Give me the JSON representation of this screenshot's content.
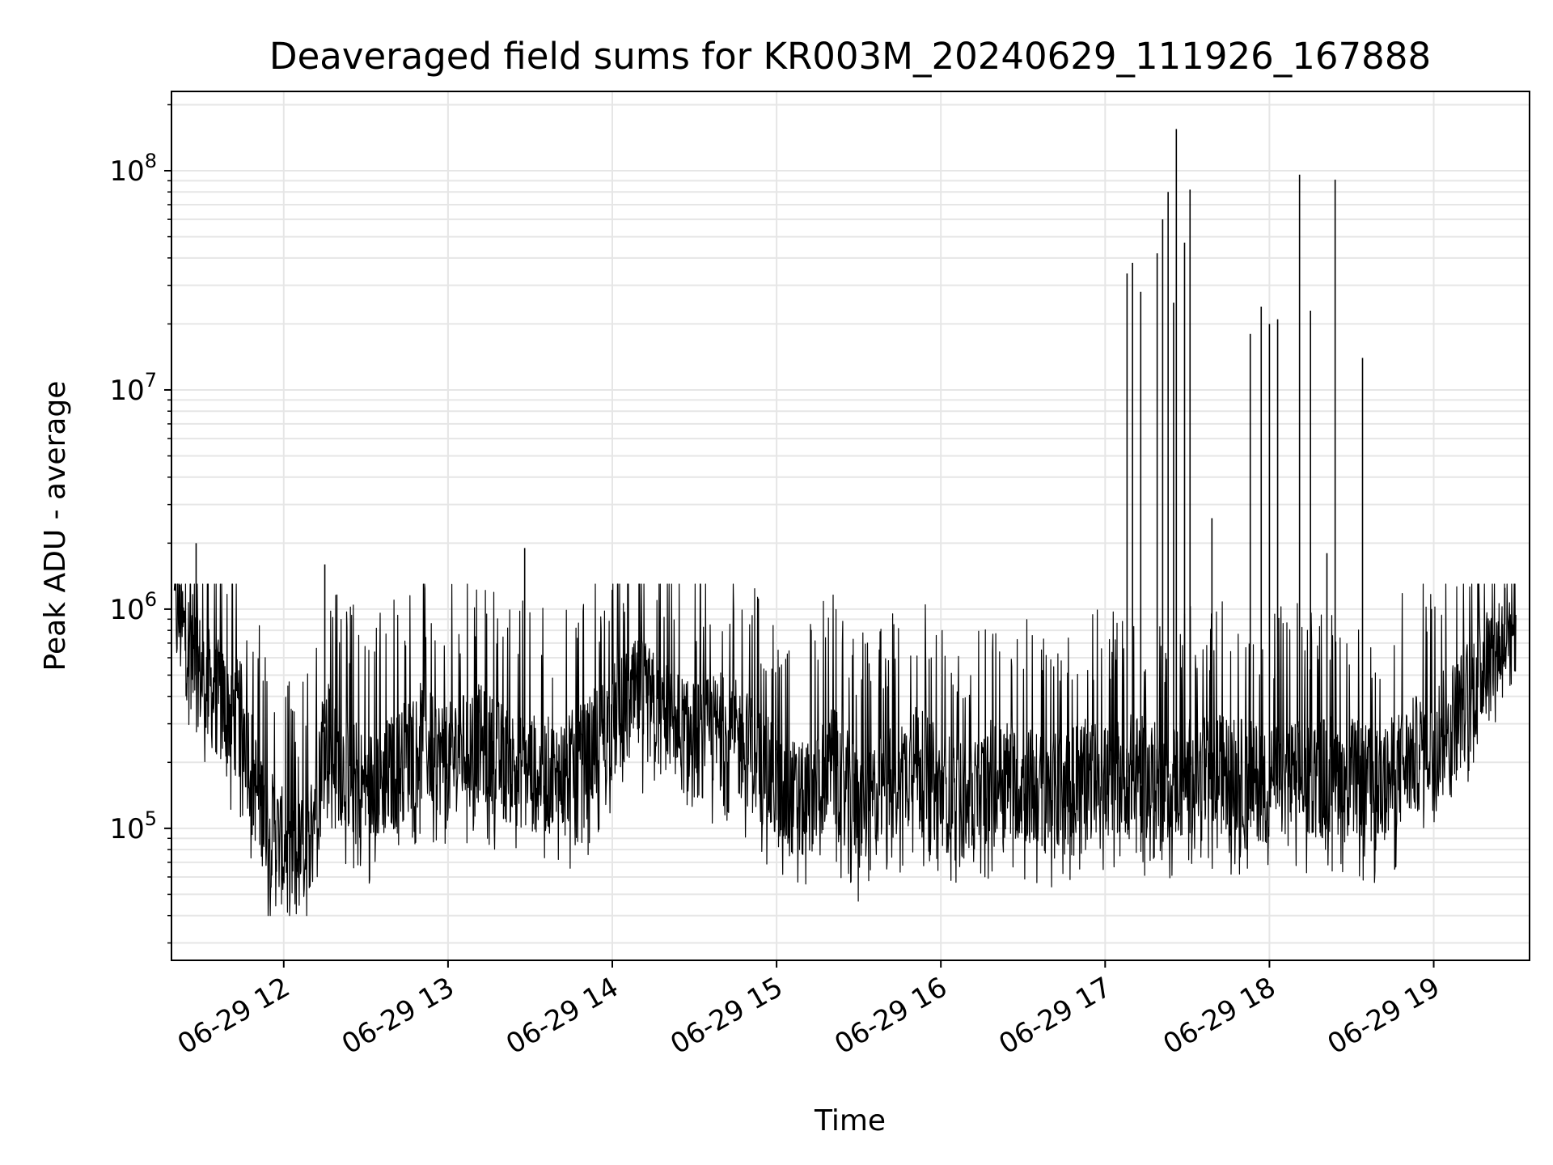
{
  "chart_data": {
    "type": "line",
    "title": "Deaveraged field sums for KR003M_20240629_111926_167888",
    "xlabel": "Time",
    "ylabel": "Peak ADU - average",
    "yscale": "log",
    "ylim": [
      25000,
      230000000
    ],
    "xlim": [
      "2024-06-29 11:19",
      "2024-06-29 19:35"
    ],
    "x_ticks": [
      {
        "value": "2024-06-29 12:00",
        "label": "06-29 12"
      },
      {
        "value": "2024-06-29 13:00",
        "label": "06-29 13"
      },
      {
        "value": "2024-06-29 14:00",
        "label": "06-29 14"
      },
      {
        "value": "2024-06-29 15:00",
        "label": "06-29 15"
      },
      {
        "value": "2024-06-29 16:00",
        "label": "06-29 16"
      },
      {
        "value": "2024-06-29 17:00",
        "label": "06-29 17"
      },
      {
        "value": "2024-06-29 18:00",
        "label": "06-29 18"
      },
      {
        "value": "2024-06-29 19:00",
        "label": "06-29 19"
      }
    ],
    "y_ticks": [
      {
        "value": 100000,
        "base": "10",
        "exp": "5"
      },
      {
        "value": 1000000,
        "base": "10",
        "exp": "6"
      },
      {
        "value": 10000000,
        "base": "10",
        "exp": "7"
      },
      {
        "value": 100000000,
        "base": "10",
        "exp": "8"
      }
    ],
    "grid": true,
    "line_color": "#000000",
    "grid_color": "#e6e6e6",
    "series": [
      {
        "x": [
          "2024-06-29 11:20",
          "2024-06-29 11:25",
          "2024-06-29 11:30",
          "2024-06-29 11:35",
          "2024-06-29 11:40",
          "2024-06-29 11:45",
          "2024-06-29 11:50",
          "2024-06-29 11:55",
          "2024-06-29 12:00",
          "2024-06-29 12:05",
          "2024-06-29 12:10",
          "2024-06-29 12:15",
          "2024-06-29 12:20",
          "2024-06-29 12:30",
          "2024-06-29 12:40",
          "2024-06-29 12:50",
          "2024-06-29 13:00",
          "2024-06-29 13:10",
          "2024-06-29 13:20",
          "2024-06-29 13:30",
          "2024-06-29 13:40",
          "2024-06-29 13:50",
          "2024-06-29 14:00",
          "2024-06-29 14:10",
          "2024-06-29 14:20",
          "2024-06-29 14:30",
          "2024-06-29 14:40",
          "2024-06-29 14:50",
          "2024-06-29 15:00",
          "2024-06-29 15:10",
          "2024-06-29 15:20",
          "2024-06-29 15:30",
          "2024-06-29 15:40",
          "2024-06-29 15:50",
          "2024-06-29 16:00",
          "2024-06-29 16:10",
          "2024-06-29 16:20",
          "2024-06-29 16:30",
          "2024-06-29 16:40",
          "2024-06-29 16:50",
          "2024-06-29 17:00",
          "2024-06-29 17:10",
          "2024-06-29 17:20",
          "2024-06-29 17:30",
          "2024-06-29 17:40",
          "2024-06-29 17:50",
          "2024-06-29 18:00",
          "2024-06-29 18:10",
          "2024-06-29 18:20",
          "2024-06-29 18:30",
          "2024-06-29 18:40",
          "2024-06-29 18:50",
          "2024-06-29 19:00",
          "2024-06-29 19:10",
          "2024-06-29 19:20",
          "2024-06-29 19:30"
        ],
        "y": [
          1000000,
          700000,
          500000,
          400000,
          350000,
          300000,
          150000,
          100000,
          80000,
          70000,
          100000,
          300000,
          200000,
          150000,
          180000,
          250000,
          200000,
          250000,
          200000,
          180000,
          170000,
          200000,
          300000,
          400000,
          300000,
          250000,
          280000,
          230000,
          150000,
          130000,
          200000,
          120000,
          150000,
          200000,
          150000,
          130000,
          180000,
          160000,
          140000,
          170000,
          160000,
          180000,
          160000,
          170000,
          180000,
          170000,
          160000,
          170000,
          180000,
          170000,
          150000,
          200000,
          250000,
          350000,
          600000,
          850000
        ]
      }
    ],
    "spikes": [
      {
        "x": "2024-06-29 11:28",
        "y": 2000000
      },
      {
        "x": "2024-06-29 12:15",
        "y": 1600000
      },
      {
        "x": "2024-06-29 13:28",
        "y": 1900000
      },
      {
        "x": "2024-06-29 17:08",
        "y": 34000000
      },
      {
        "x": "2024-06-29 17:10",
        "y": 38000000
      },
      {
        "x": "2024-06-29 17:13",
        "y": 28000000
      },
      {
        "x": "2024-06-29 17:19",
        "y": 42000000
      },
      {
        "x": "2024-06-29 17:21",
        "y": 60000000
      },
      {
        "x": "2024-06-29 17:23",
        "y": 80000000
      },
      {
        "x": "2024-06-29 17:25",
        "y": 25000000
      },
      {
        "x": "2024-06-29 17:26",
        "y": 155000000
      },
      {
        "x": "2024-06-29 17:29",
        "y": 47000000
      },
      {
        "x": "2024-06-29 17:31",
        "y": 82000000
      },
      {
        "x": "2024-06-29 17:39",
        "y": 2600000
      },
      {
        "x": "2024-06-29 17:53",
        "y": 18000000
      },
      {
        "x": "2024-06-29 17:57",
        "y": 24000000
      },
      {
        "x": "2024-06-29 18:00",
        "y": 20000000
      },
      {
        "x": "2024-06-29 18:03",
        "y": 21000000
      },
      {
        "x": "2024-06-29 18:11",
        "y": 96000000
      },
      {
        "x": "2024-06-29 18:15",
        "y": 23000000
      },
      {
        "x": "2024-06-29 18:21",
        "y": 1800000
      },
      {
        "x": "2024-06-29 18:24",
        "y": 91000000
      },
      {
        "x": "2024-06-29 18:34",
        "y": 14000000
      },
      {
        "x": "2024-06-29 19:26",
        "y": 1250000
      }
    ]
  }
}
